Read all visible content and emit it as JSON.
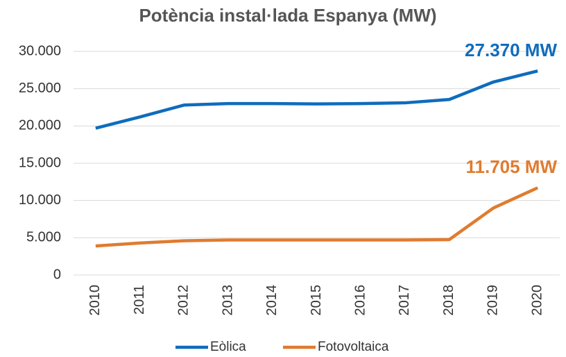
{
  "chart_data": {
    "type": "line",
    "title": "Potència instal·lada Espanya (MW)",
    "categories": [
      "2010",
      "2011",
      "2012",
      "2013",
      "2014",
      "2015",
      "2016",
      "2017",
      "2018",
      "2019",
      "2020"
    ],
    "series": [
      {
        "name": "Eòlica",
        "color": "#0f6cbd",
        "values": [
          19700,
          21200,
          22800,
          23000,
          23000,
          22950,
          23000,
          23100,
          23550,
          25900,
          27370
        ]
      },
      {
        "name": "Fotovoltaica",
        "color": "#e07b2f",
        "values": [
          3900,
          4300,
          4600,
          4700,
          4700,
          4700,
          4700,
          4700,
          4750,
          9000,
          11705
        ]
      }
    ],
    "annotations": [
      {
        "text": "27.370 MW",
        "series": 0
      },
      {
        "text": "11.705 MW",
        "series": 1
      }
    ],
    "ylim": [
      0,
      30000
    ],
    "yticks": [
      0,
      {
        "value": 5000,
        "label": "5.000"
      },
      {
        "value": 10000,
        "label": "10.000"
      },
      {
        "value": 15000,
        "label": "15.000"
      },
      {
        "value": 20000,
        "label": "20.000"
      },
      {
        "value": 25000,
        "label": "25.000"
      },
      {
        "value": 30000,
        "label": "30.000"
      }
    ],
    "grid": true,
    "legend": "bottom"
  }
}
